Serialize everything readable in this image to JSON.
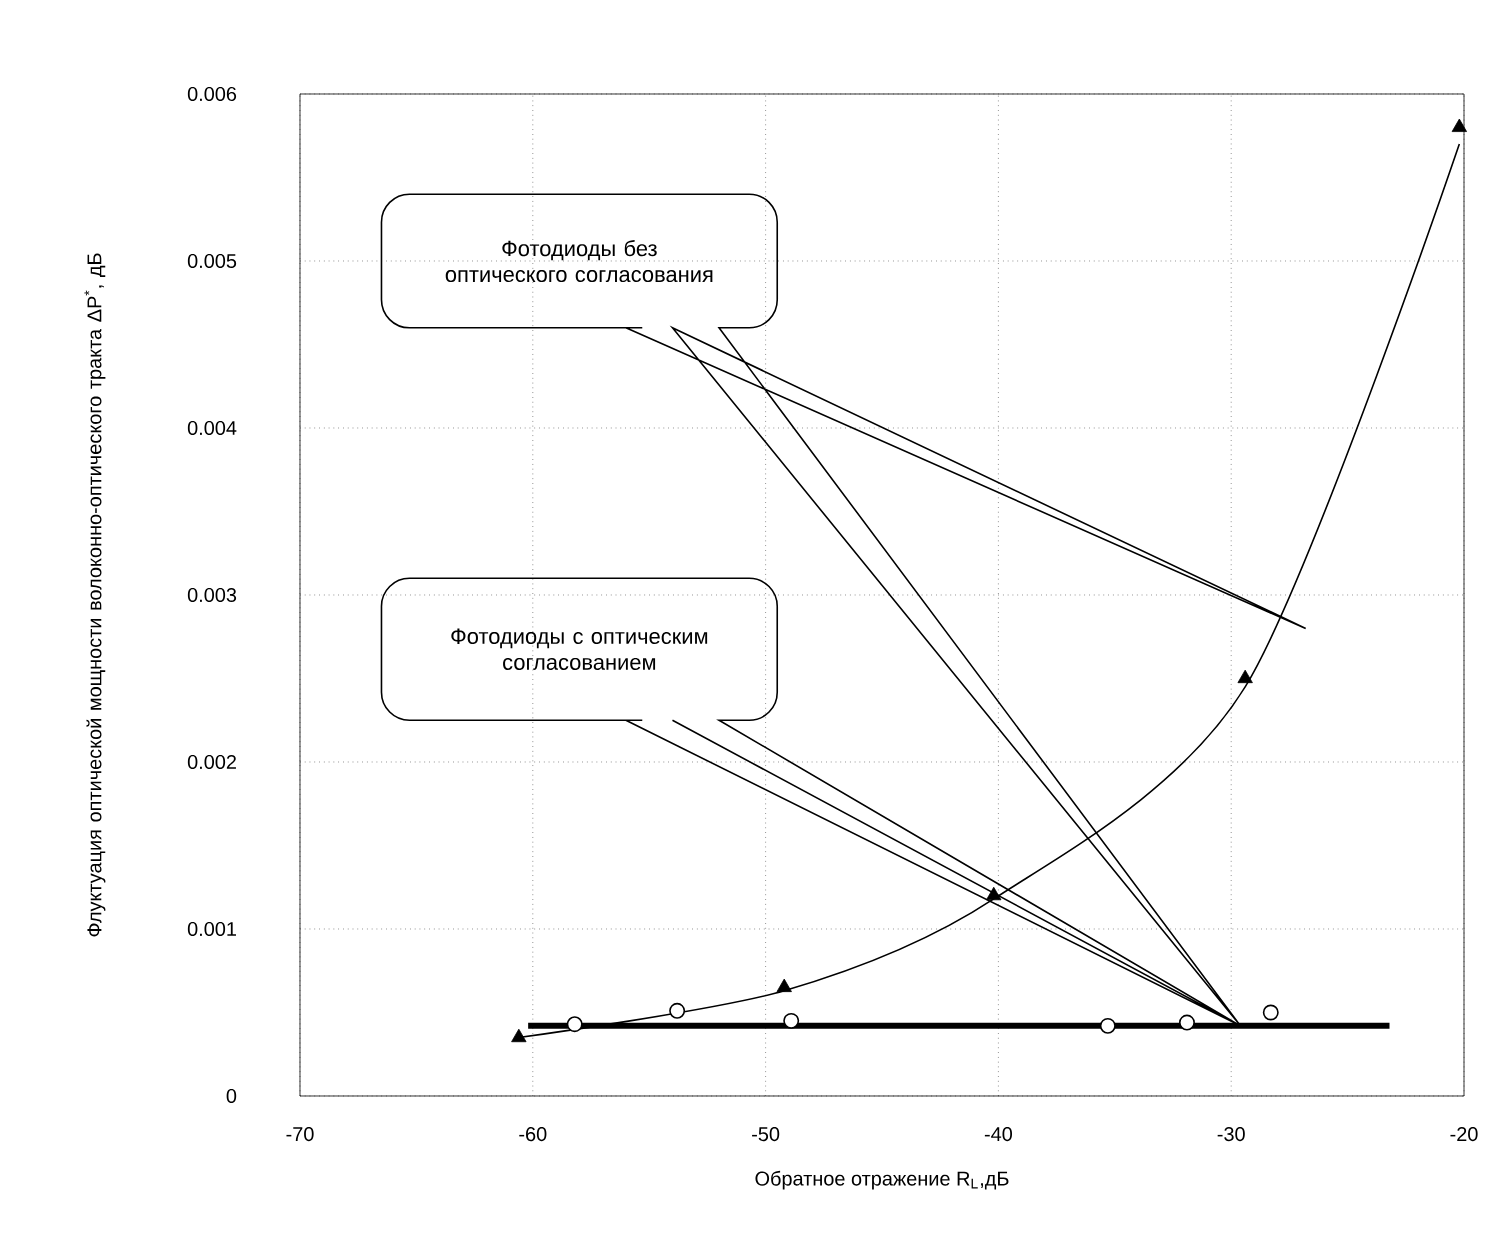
{
  "chart_data": {
    "type": "scatter",
    "xlabel": "Обратное отражение R$_{L}$,дБ",
    "ylabel": "Флуктуация оптической мощности волоконно-оптического тракта ΔP$^{*}$, дБ",
    "xlim": [
      -70,
      -20
    ],
    "ylim": [
      0,
      0.006
    ],
    "xticks": [
      -70,
      -60,
      -50,
      -40,
      -30,
      -20
    ],
    "yticks": [
      0,
      0.001,
      0.002,
      0.003,
      0.004,
      0.005,
      0.006
    ],
    "grid": true,
    "series": [
      {
        "type": "line",
        "color": "#000000",
        "marker": "none",
        "line_style": "solid",
        "x": [
          -60.6,
          -49.2,
          -40.2,
          -29.4,
          -20.2
        ],
        "values": [
          0.00035,
          0.00063,
          0.00118,
          0.00245,
          0.0057
        ]
      },
      {
        "color": "#000000",
        "marker": "triangle",
        "x": [
          -60.6,
          -49.2,
          -40.2,
          -29.4,
          -20.2
        ],
        "values": [
          0.00035,
          0.00065,
          0.0012,
          0.0025,
          0.0058
        ]
      },
      {
        "color": "#000000",
        "marker": "circle",
        "x": [
          -58.2,
          -53.8,
          -48.9,
          -35.3,
          -31.9,
          -28.3
        ],
        "values": [
          0.00043,
          0.00051,
          0.00045,
          0.00042,
          0.00044,
          0.0005
        ]
      },
      {
        "type": "line",
        "color": "#000000",
        "marker": "none",
        "line_style": "solid",
        "x": [
          -60.2,
          -23.2
        ],
        "values": [
          0.00042,
          0.00042
        ]
      }
    ],
    "annotations": [
      "Фотодиоды без оптического согласования",
      "Фотодиоды с оптическим согласованием"
    ]
  }
}
